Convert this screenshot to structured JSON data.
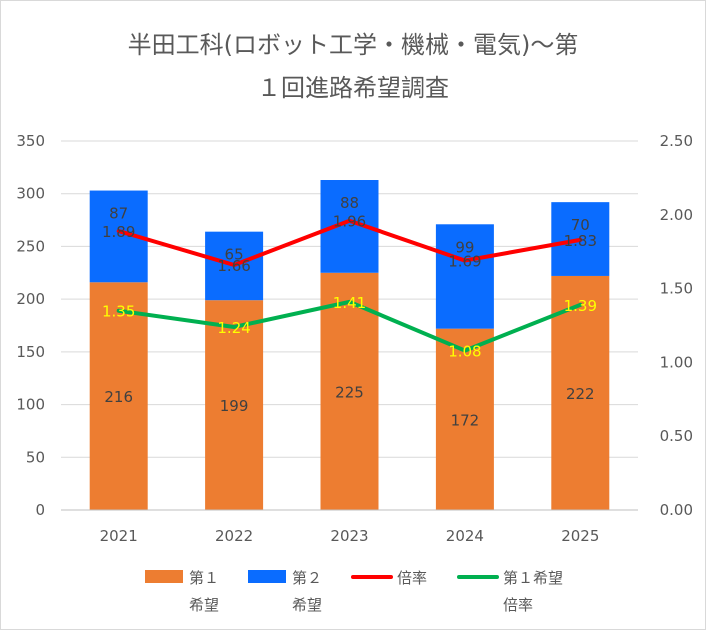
{
  "chart_data": {
    "type": "bar",
    "stacked": true,
    "title_lines": [
      "半田工科(ロボット工学・機械・電気)～第",
      "１回進路希望調査"
    ],
    "categories": [
      "2021",
      "2022",
      "2023",
      "2024",
      "2025"
    ],
    "series": [
      {
        "name_lines": [
          "第１",
          "希望"
        ],
        "type": "bar",
        "axis": "left",
        "color": "#ed7d31",
        "values": [
          216,
          199,
          225,
          172,
          222
        ],
        "labels": [
          "216",
          "199",
          "225",
          "172",
          "222"
        ]
      },
      {
        "name_lines": [
          "第２",
          "希望"
        ],
        "type": "bar",
        "axis": "left",
        "color": "#0a6cff",
        "values": [
          87,
          65,
          88,
          99,
          70
        ],
        "labels": [
          "87",
          "65",
          "88",
          "99",
          "70"
        ]
      },
      {
        "name_lines": [
          "倍率"
        ],
        "type": "line",
        "axis": "right",
        "color": "#ff0000",
        "values": [
          1.89,
          1.66,
          1.96,
          1.69,
          1.83
        ],
        "labels": [
          "1.89",
          "1.66",
          "1.96",
          "1.69",
          "1.83"
        ]
      },
      {
        "name_lines": [
          "第１希望",
          "倍率"
        ],
        "type": "line",
        "axis": "right",
        "color": "#00b050",
        "values": [
          1.35,
          1.24,
          1.41,
          1.08,
          1.39
        ],
        "labels": [
          "1.35",
          "1.24",
          "1.41",
          "1.08",
          "1.39"
        ]
      }
    ],
    "y_left": {
      "min": 0,
      "max": 350,
      "ticks": [
        "0",
        "50",
        "100",
        "150",
        "200",
        "250",
        "300",
        "350"
      ]
    },
    "y_right": {
      "min": 0,
      "max": 2.5,
      "ticks": [
        "0.00",
        "0.50",
        "1.00",
        "1.50",
        "2.00",
        "2.50"
      ]
    },
    "grid": true,
    "legend": "bottom"
  }
}
